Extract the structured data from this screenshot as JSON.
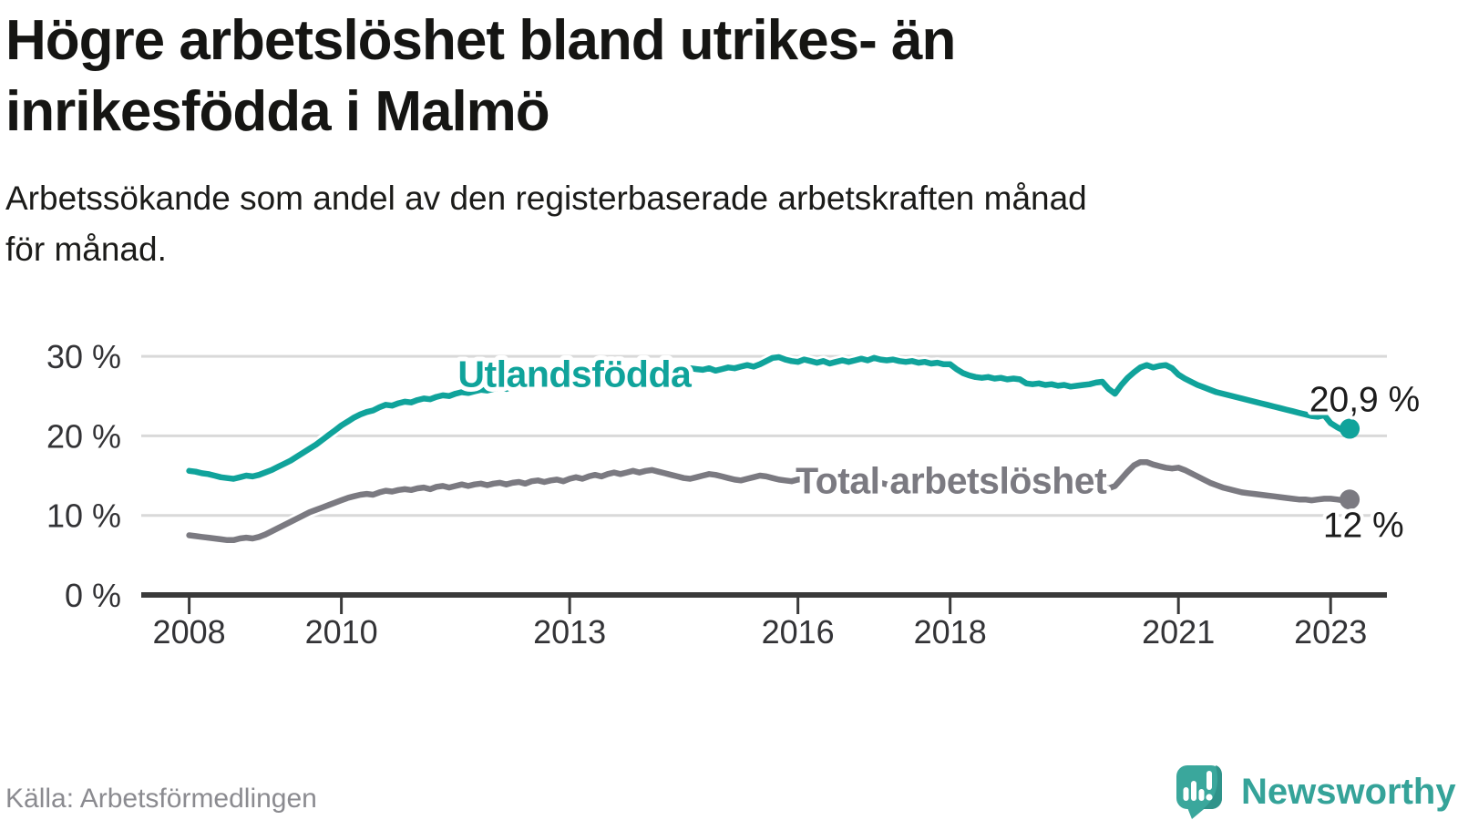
{
  "header": {
    "title": "Högre arbetslöshet bland utrikes- än inrikesfödda i Malmö",
    "title_lines": [
      "Högre arbetslöshet bland utrikes- än",
      "inrikesfödda i Malmö"
    ],
    "subtitle": "Arbetssökande som andel av den registerbaserade arbetskraften månad för månad.",
    "subtitle_lines": [
      "Arbetssökande som andel av den registerbaserade arbetskraften månad",
      "för månad."
    ]
  },
  "footer": {
    "source": "Källa: Arbetsförmedlingen",
    "brand": "Newsworthy",
    "brand_color": "#35a399"
  },
  "chart_data": {
    "type": "line",
    "title": "Högre arbetslöshet bland utrikes- än inrikesfödda i Malmö",
    "subtitle": "Arbetssökande som andel av den registerbaserade arbetskraften månad för månad.",
    "xlabel": "",
    "ylabel": "",
    "x_start_year": 2008,
    "x_months_per_step": 1,
    "xlim": [
      2007.37,
      2023.74
    ],
    "ylim": [
      0,
      31.5
    ],
    "grid": "horizontal",
    "y_gridlines": [
      10,
      20,
      30
    ],
    "x_ticks": [
      2008,
      2010,
      2013,
      2016,
      2018,
      2021,
      2023
    ],
    "x_tick_labels": [
      "2008",
      "2010",
      "2013",
      "2016",
      "2018",
      "2021",
      "2023"
    ],
    "y_ticks": [
      0,
      10,
      20,
      30
    ],
    "y_tick_labels": [
      "0 %",
      "10 %",
      "20 %",
      "30 %"
    ],
    "axis_color": "#3a3a3a",
    "grid_color": "#d9d9d9",
    "series": [
      {
        "name": "Utlandsfödda",
        "color": "#10a39b",
        "end_label": "20,9 %",
        "end_value": 20.9,
        "label_pos": {
          "year": 2011.53,
          "value": 26.2
        },
        "end_label_pos": {
          "year": 2022.72,
          "value": 23.1
        },
        "values": [
          15.6,
          15.5,
          15.3,
          15.2,
          15.0,
          14.8,
          14.7,
          14.6,
          14.8,
          15.0,
          14.9,
          15.1,
          15.4,
          15.7,
          16.1,
          16.5,
          16.9,
          17.4,
          17.9,
          18.4,
          18.9,
          19.5,
          20.1,
          20.7,
          21.3,
          21.8,
          22.3,
          22.7,
          23.0,
          23.2,
          23.6,
          23.9,
          23.8,
          24.1,
          24.3,
          24.2,
          24.5,
          24.7,
          24.6,
          24.9,
          25.1,
          25.0,
          25.3,
          25.5,
          25.4,
          25.6,
          25.8,
          25.7,
          25.9,
          26.1,
          25.9,
          26.2,
          26.3,
          26.1,
          26.4,
          26.6,
          26.5,
          26.7,
          26.8,
          26.6,
          26.9,
          27.1,
          27.0,
          27.2,
          27.3,
          27.1,
          27.4,
          27.6,
          27.5,
          27.7,
          27.8,
          27.6,
          27.9,
          28.1,
          28.0,
          28.2,
          28.3,
          28.1,
          28.3,
          28.5,
          28.4,
          28.3,
          28.5,
          28.2,
          28.4,
          28.6,
          28.5,
          28.7,
          28.9,
          28.7,
          29.0,
          29.4,
          29.8,
          29.9,
          29.6,
          29.4,
          29.3,
          29.6,
          29.4,
          29.2,
          29.4,
          29.1,
          29.3,
          29.5,
          29.3,
          29.5,
          29.7,
          29.5,
          29.8,
          29.6,
          29.5,
          29.6,
          29.4,
          29.3,
          29.4,
          29.2,
          29.3,
          29.1,
          29.2,
          29.0,
          29.0,
          28.4,
          27.9,
          27.6,
          27.4,
          27.3,
          27.4,
          27.2,
          27.3,
          27.1,
          27.2,
          27.1,
          26.6,
          26.5,
          26.6,
          26.4,
          26.5,
          26.3,
          26.4,
          26.2,
          26.3,
          26.4,
          26.5,
          26.7,
          26.8,
          25.9,
          25.3,
          26.4,
          27.3,
          28.0,
          28.6,
          28.9,
          28.6,
          28.8,
          28.9,
          28.5,
          27.7,
          27.2,
          26.8,
          26.4,
          26.1,
          25.8,
          25.5,
          25.3,
          25.1,
          24.9,
          24.7,
          24.5,
          24.3,
          24.1,
          23.9,
          23.7,
          23.5,
          23.3,
          23.1,
          22.9,
          22.7,
          22.5,
          22.4,
          22.6,
          21.6,
          21.1,
          20.7,
          20.9
        ]
      },
      {
        "name": "Total arbetslöshet",
        "color": "#7b7a81",
        "end_label": "12 %",
        "end_value": 12,
        "label_pos": {
          "year": 2015.97,
          "value": 12.75
        },
        "end_label_pos": {
          "year": 2022.9,
          "value": 7.25
        },
        "values": [
          7.5,
          7.4,
          7.3,
          7.2,
          7.1,
          7.0,
          6.9,
          6.9,
          7.1,
          7.2,
          7.1,
          7.3,
          7.6,
          8.0,
          8.4,
          8.8,
          9.2,
          9.6,
          10.0,
          10.4,
          10.7,
          11.0,
          11.3,
          11.6,
          11.9,
          12.2,
          12.4,
          12.6,
          12.7,
          12.6,
          12.9,
          13.1,
          13.0,
          13.2,
          13.3,
          13.2,
          13.4,
          13.5,
          13.3,
          13.6,
          13.7,
          13.5,
          13.7,
          13.9,
          13.7,
          13.9,
          14.0,
          13.8,
          14.0,
          14.1,
          13.9,
          14.1,
          14.2,
          14.0,
          14.3,
          14.4,
          14.2,
          14.4,
          14.5,
          14.3,
          14.6,
          14.8,
          14.6,
          14.9,
          15.1,
          14.9,
          15.2,
          15.4,
          15.2,
          15.4,
          15.6,
          15.4,
          15.6,
          15.7,
          15.5,
          15.3,
          15.1,
          14.9,
          14.7,
          14.6,
          14.8,
          15.0,
          15.2,
          15.1,
          14.9,
          14.7,
          14.5,
          14.4,
          14.6,
          14.8,
          15.0,
          14.9,
          14.7,
          14.5,
          14.4,
          14.3,
          14.5,
          14.6,
          14.4,
          14.3,
          14.2,
          14.1,
          14.2,
          14.3,
          14.2,
          14.1,
          14.0,
          13.9,
          14.0,
          14.1,
          13.9,
          13.8,
          13.7,
          13.6,
          13.7,
          13.8,
          13.7,
          13.6,
          13.5,
          13.4,
          13.6,
          13.7,
          13.5,
          13.4,
          13.3,
          13.2,
          13.3,
          13.4,
          13.3,
          13.2,
          13.1,
          13.0,
          13.2,
          13.3,
          13.1,
          13.0,
          12.9,
          12.9,
          13.0,
          13.1,
          13.0,
          13.1,
          13.2,
          13.3,
          13.5,
          13.4,
          13.7,
          14.6,
          15.5,
          16.3,
          16.7,
          16.7,
          16.4,
          16.2,
          16.0,
          15.9,
          16.0,
          15.7,
          15.3,
          14.9,
          14.5,
          14.1,
          13.8,
          13.5,
          13.3,
          13.1,
          12.9,
          12.8,
          12.7,
          12.6,
          12.5,
          12.4,
          12.3,
          12.2,
          12.1,
          12.0,
          12.0,
          11.9,
          12.0,
          12.1,
          12.1,
          12.0,
          11.9,
          12.0
        ]
      }
    ]
  }
}
